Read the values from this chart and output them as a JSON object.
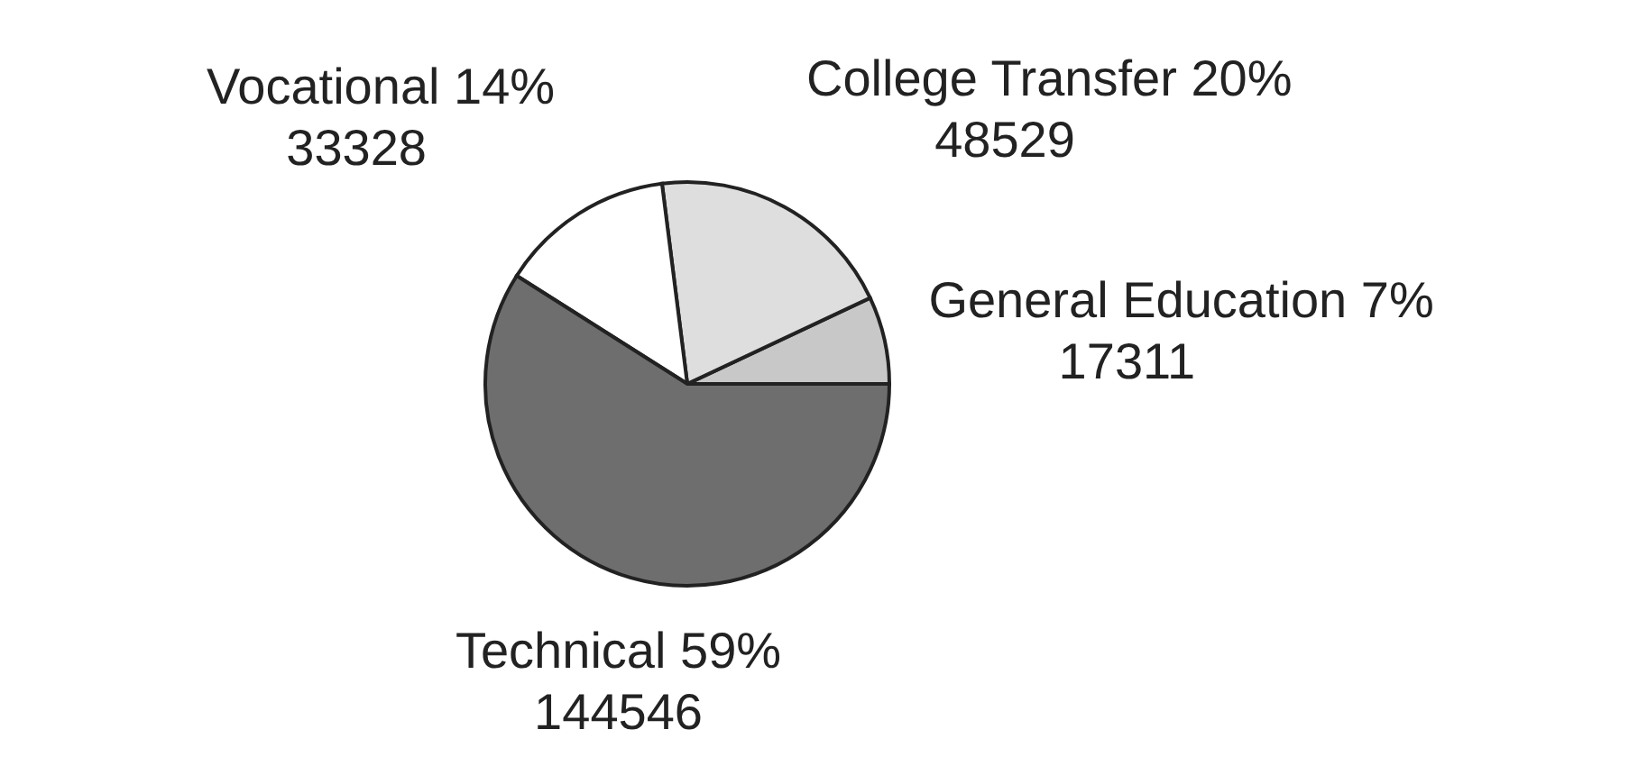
{
  "chart_data": {
    "type": "pie",
    "categories": [
      "General Education",
      "College Transfer",
      "Vocational",
      "Technical"
    ],
    "values": [
      7,
      20,
      14,
      59
    ],
    "value_labels": [
      "7%",
      "20%",
      "14%",
      "59%"
    ],
    "colors": [
      "#c8c8c8",
      "#dedede",
      "#ffffff",
      "#6e6e6e"
    ],
    "annotations": [
      {
        "text": "17311",
        "x": "General Education"
      },
      {
        "text": "48529",
        "x": "College Transfer"
      },
      {
        "text": "33328",
        "x": "Vocational"
      },
      {
        "text": "144546",
        "x": "Technical"
      }
    ],
    "legend": false
  }
}
